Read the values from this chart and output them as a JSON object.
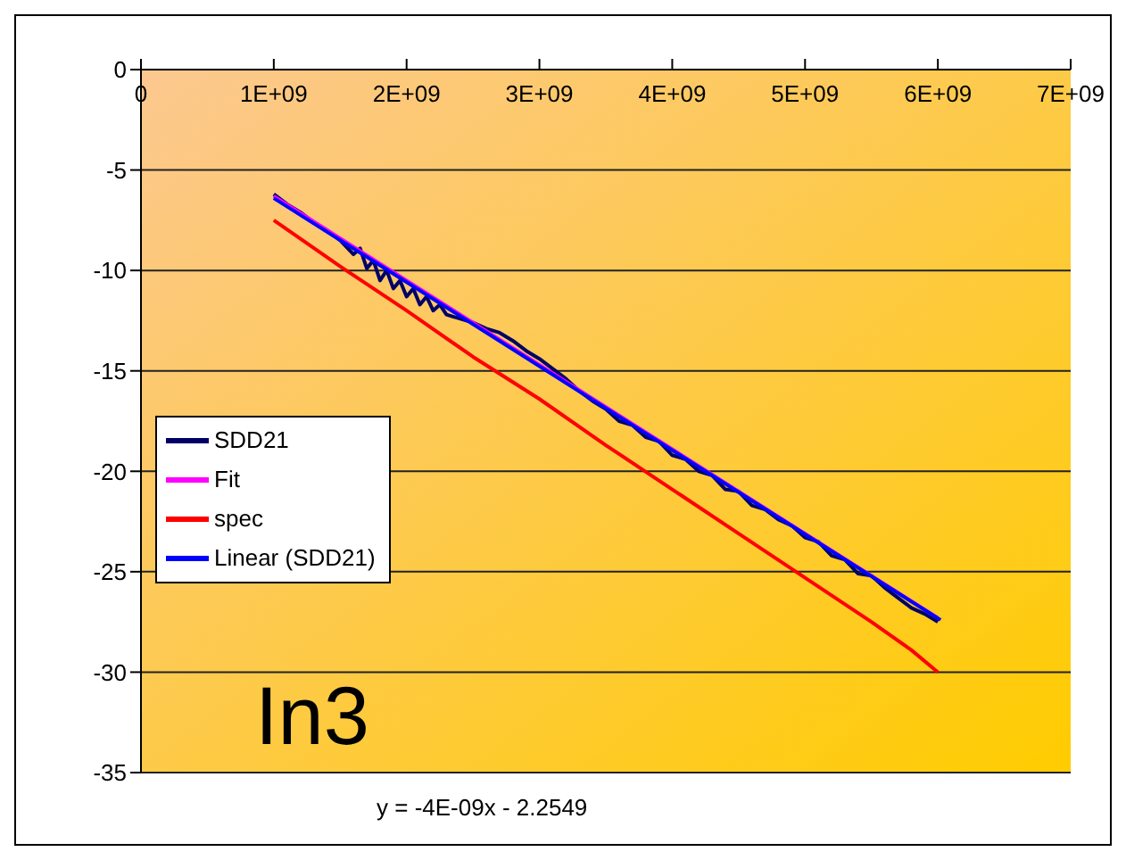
{
  "chart_data": {
    "type": "line",
    "xlim": [
      0,
      7000000000.0
    ],
    "xticks": [
      0,
      {
        "value": 1000000000.0,
        "label": "1E+09"
      },
      {
        "value": 2000000000.0,
        "label": "2E+09"
      },
      {
        "value": 3000000000.0,
        "label": "3E+09"
      },
      {
        "value": 4000000000.0,
        "label": "4E+09"
      },
      {
        "value": 5000000000.0,
        "label": "5E+09"
      },
      {
        "value": 6000000000.0,
        "label": "6E+09"
      },
      {
        "value": 7000000000.0,
        "label": "7E+09"
      }
    ],
    "ylim": [
      -35,
      0
    ],
    "yticks": [
      -35,
      -30,
      -25,
      -20,
      -15,
      -10,
      -5,
      0
    ],
    "grid": "y",
    "legend": "left",
    "marker": "none",
    "line_style": "solid",
    "annotations": [
      "In3",
      "y = -4E-09x - 2.2549"
    ],
    "series": [
      {
        "name": "SDD21",
        "color": "#000066",
        "x": [
          1000000000.0,
          1100000000.0,
          1200000000.0,
          1300000000.0,
          1400000000.0,
          1500000000.0,
          1600000000.0,
          1650000000.0,
          1700000000.0,
          1750000000.0,
          1800000000.0,
          1850000000.0,
          1900000000.0,
          1950000000.0,
          2000000000.0,
          2050000000.0,
          2100000000.0,
          2150000000.0,
          2200000000.0,
          2250000000.0,
          2300000000.0,
          2400000000.0,
          2500000000.0,
          2600000000.0,
          2700000000.0,
          2800000000.0,
          2900000000.0,
          3000000000.0,
          3100000000.0,
          3200000000.0,
          3300000000.0,
          3400000000.0,
          3500000000.0,
          3600000000.0,
          3700000000.0,
          3800000000.0,
          3900000000.0,
          4000000000.0,
          4100000000.0,
          4200000000.0,
          4300000000.0,
          4400000000.0,
          4500000000.0,
          4600000000.0,
          4700000000.0,
          4800000000.0,
          4900000000.0,
          5000000000.0,
          5100000000.0,
          5200000000.0,
          5300000000.0,
          5400000000.0,
          5500000000.0,
          5600000000.0,
          5700000000.0,
          5800000000.0,
          5900000000.0,
          6000000000.0
        ],
        "values": [
          -6.2,
          -6.7,
          -7.1,
          -7.6,
          -8.0,
          -8.5,
          -9.2,
          -8.9,
          -9.9,
          -9.5,
          -10.5,
          -10.0,
          -10.9,
          -10.5,
          -11.3,
          -10.9,
          -11.7,
          -11.3,
          -12.0,
          -11.7,
          -12.2,
          -12.4,
          -12.6,
          -12.9,
          -13.1,
          -13.5,
          -14.0,
          -14.4,
          -14.9,
          -15.4,
          -16.0,
          -16.5,
          -16.9,
          -17.5,
          -17.7,
          -18.3,
          -18.5,
          -19.2,
          -19.4,
          -20.0,
          -20.2,
          -20.9,
          -21.0,
          -21.7,
          -21.9,
          -22.4,
          -22.7,
          -23.3,
          -23.5,
          -24.2,
          -24.4,
          -25.1,
          -25.2,
          -25.8,
          -26.3,
          -26.8,
          -27.1,
          -27.5
        ]
      },
      {
        "name": "Fit",
        "color": "#ff00ff",
        "x": [
          1000000000.0,
          2000000000.0,
          3000000000.0,
          4000000000.0,
          5000000000.0,
          6000000000.0
        ],
        "values": [
          -6.3,
          -10.5,
          -14.7,
          -18.9,
          -23.1,
          -27.3
        ]
      },
      {
        "name": "spec",
        "color": "#ff0000",
        "x": [
          1000000000.0,
          1500000000.0,
          2000000000.0,
          2500000000.0,
          3000000000.0,
          3500000000.0,
          4000000000.0,
          4500000000.0,
          5000000000.0,
          5500000000.0,
          5800000000.0,
          6000000000.0
        ],
        "values": [
          -7.5,
          -9.8,
          -12.0,
          -14.3,
          -16.4,
          -18.7,
          -20.9,
          -23.1,
          -25.3,
          -27.5,
          -28.9,
          -30.0
        ]
      },
      {
        "name": "Linear (SDD21)",
        "color": "#0000ff",
        "x": [
          1000000000.0,
          6020000000.0
        ],
        "values": [
          -6.4,
          -27.4
        ]
      }
    ]
  }
}
